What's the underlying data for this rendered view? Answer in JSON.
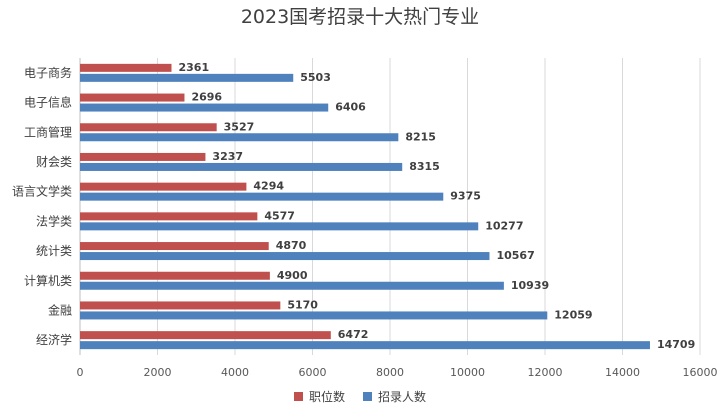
{
  "chart_data": {
    "type": "bar",
    "orientation": "horizontal",
    "title": "2023国考招录十大热门专业",
    "categories": [
      "电子商务",
      "电子信息",
      "工商管理",
      "财会类",
      "语言文学类",
      "法学类",
      "统计类",
      "计算机类",
      "金融",
      "经济学"
    ],
    "series": [
      {
        "name": "职位数",
        "color": "#C0504D",
        "values": [
          2361,
          2696,
          3527,
          3237,
          4294,
          4577,
          4870,
          4900,
          5170,
          6472
        ]
      },
      {
        "name": "招录人数",
        "color": "#4F81BD",
        "values": [
          5503,
          6406,
          8215,
          8315,
          9375,
          10277,
          10567,
          10939,
          12059,
          14709
        ]
      }
    ],
    "xlim": [
      0,
      16000
    ],
    "xticks": [
      0,
      2000,
      4000,
      6000,
      8000,
      10000,
      12000,
      14000,
      16000
    ],
    "grid": true,
    "legend_position": "bottom"
  }
}
